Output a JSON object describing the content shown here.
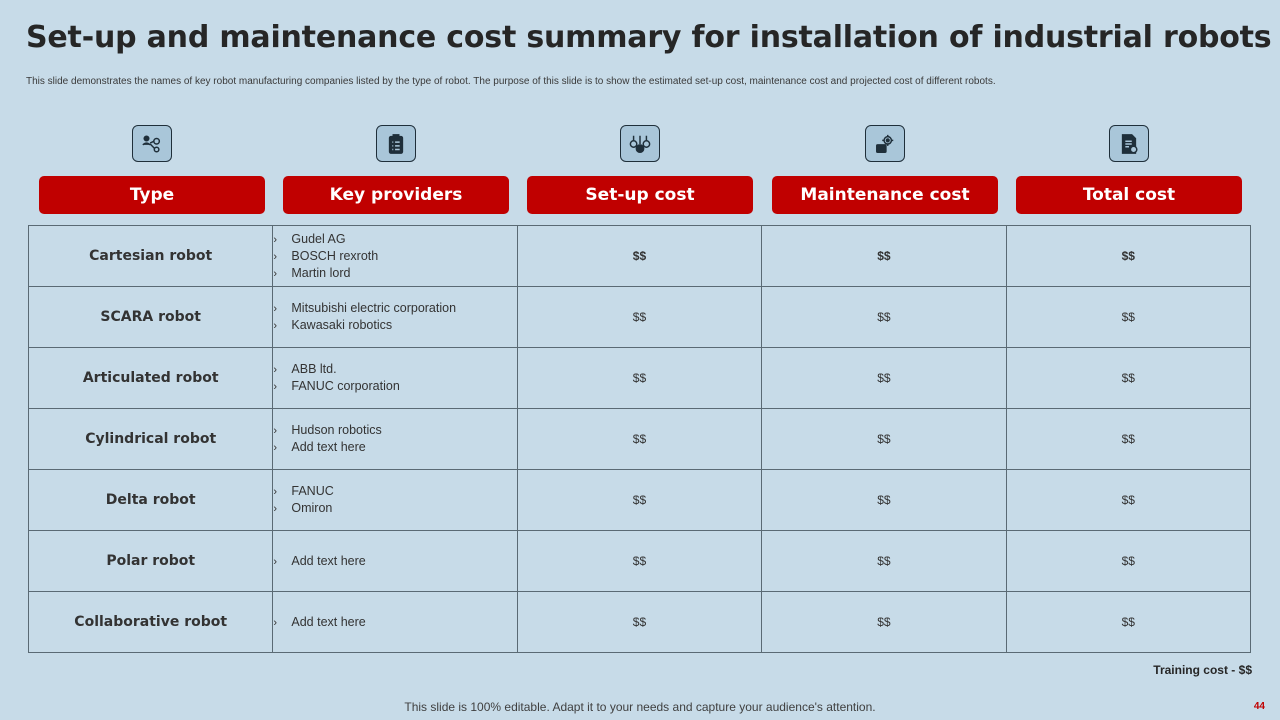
{
  "slide": {
    "title": "Set-up and maintenance cost summary for installation of industrial robots",
    "subtitle": "This slide demonstrates the names of key robot manufacturing companies listed by the type of robot. The purpose of this slide is to show the estimated set-up cost, maintenance cost and projected cost of different robots.",
    "training_cost": "Training cost - $$",
    "footer": "This slide is 100% editable. Adapt it to your needs and capture your audience's attention.",
    "page_number": "44"
  },
  "colors": {
    "background": "#c7dbe8",
    "header_red": "#c00000",
    "icon_fill": "#a9c6d9"
  },
  "icons": [
    "people-network-icon",
    "clipboard-list-icon",
    "money-balance-icon",
    "gear-money-icon",
    "document-money-icon"
  ],
  "headers": [
    "Type",
    "Key providers",
    "Set-up cost",
    "Maintenance cost",
    "Total cost"
  ],
  "rows": [
    {
      "type": "Cartesian robot",
      "providers": [
        "Gudel AG",
        "BOSCH rexroth",
        "Martin lord"
      ],
      "setup": "$$",
      "maintenance": "$$",
      "total": "$$"
    },
    {
      "type": "SCARA robot",
      "providers": [
        "Mitsubishi electric corporation",
        "Kawasaki robotics"
      ],
      "setup": "$$",
      "maintenance": "$$",
      "total": "$$"
    },
    {
      "type": "Articulated robot",
      "providers": [
        "ABB ltd.",
        "FANUC corporation"
      ],
      "setup": "$$",
      "maintenance": "$$",
      "total": "$$"
    },
    {
      "type": "Cylindrical robot",
      "providers": [
        "Hudson robotics",
        "Add text here"
      ],
      "setup": "$$",
      "maintenance": "$$",
      "total": "$$"
    },
    {
      "type": "Delta robot",
      "providers": [
        "FANUC",
        "Omiron"
      ],
      "setup": "$$",
      "maintenance": "$$",
      "total": "$$"
    },
    {
      "type": "Polar robot",
      "providers": [
        "Add text here"
      ],
      "setup": "$$",
      "maintenance": "$$",
      "total": "$$"
    },
    {
      "type": "Collaborative robot",
      "providers": [
        "Add text here"
      ],
      "setup": "$$",
      "maintenance": "$$",
      "total": "$$"
    }
  ]
}
